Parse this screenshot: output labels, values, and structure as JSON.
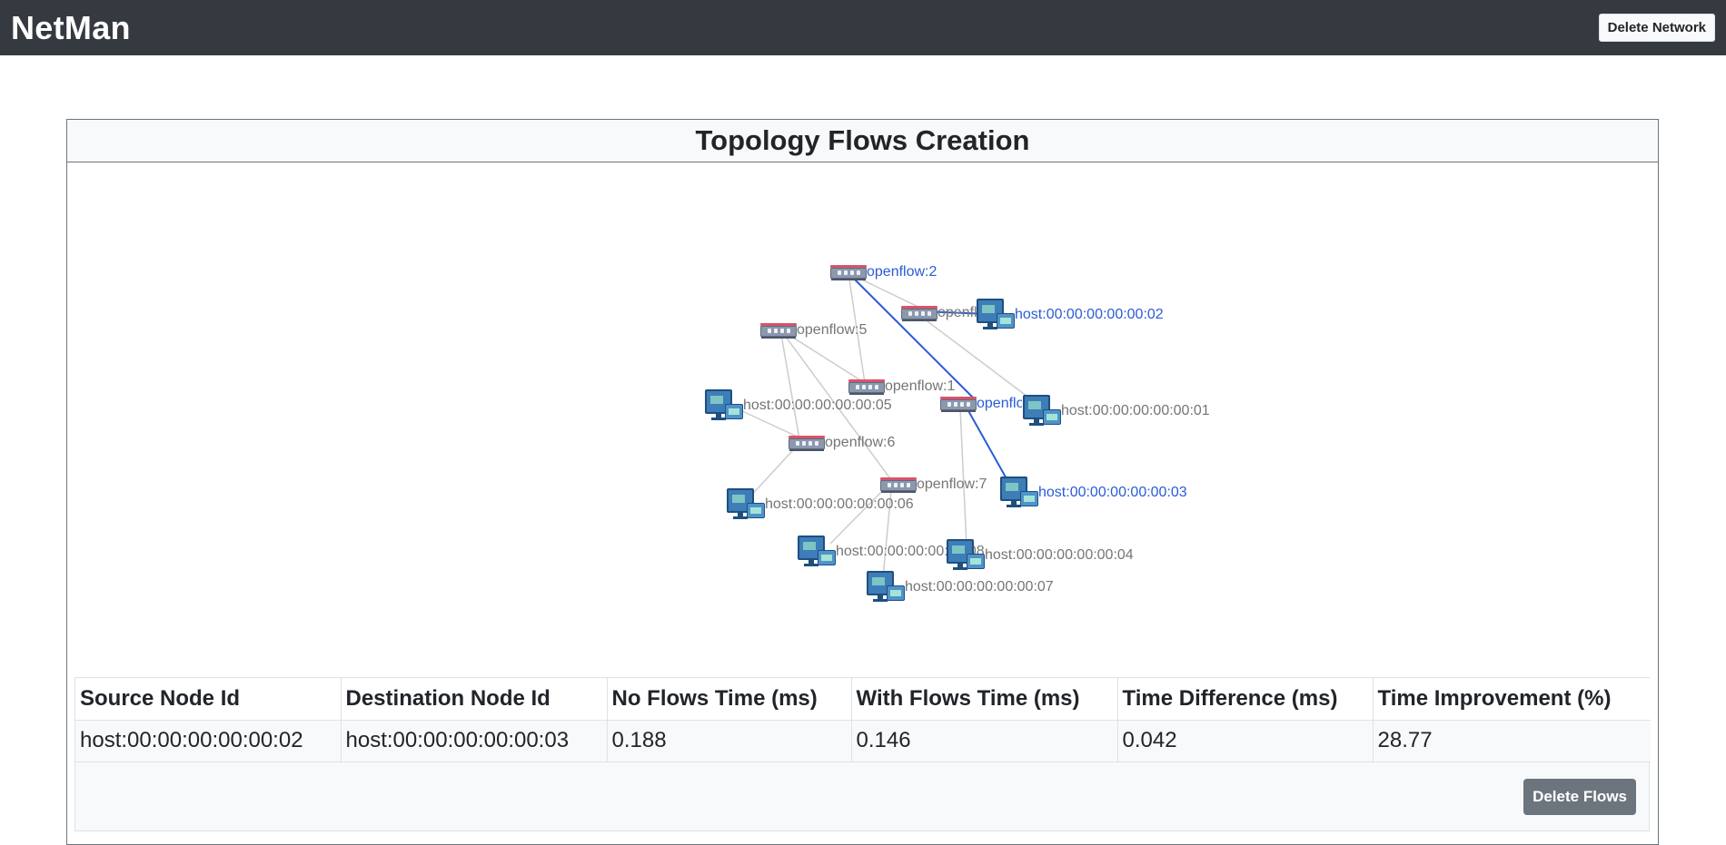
{
  "navbar": {
    "brand": "NetMan",
    "delete_network_label": "Delete Network"
  },
  "card": {
    "title": "Topology Flows Creation"
  },
  "topology": {
    "switches": [
      {
        "id": "openflow:2",
        "label": "openflow:2",
        "active": true
      },
      {
        "id": "openflow:3",
        "label": "openflow:3",
        "active": false
      },
      {
        "id": "openflow:5",
        "label": "openflow:5",
        "active": false
      },
      {
        "id": "openflow:1",
        "label": "openflow:1",
        "active": false
      },
      {
        "id": "openflow:4",
        "label": "openflow:4",
        "active": true
      },
      {
        "id": "openflow:6",
        "label": "openflow:6",
        "active": false
      },
      {
        "id": "openflow:7",
        "label": "openflow:7",
        "active": false
      }
    ],
    "hosts": [
      {
        "id": "host:00:00:00:00:00:02",
        "label": "host:00:00:00:00:00:02",
        "active": true
      },
      {
        "id": "host:00:00:00:00:00:05",
        "label": "host:00:00:00:00:00:05",
        "active": false
      },
      {
        "id": "host:00:00:00:00:00:01",
        "label": "host:00:00:00:00:00:01",
        "active": false
      },
      {
        "id": "host:00:00:00:00:00:03",
        "label": "host:00:00:00:00:00:03",
        "active": true
      },
      {
        "id": "host:00:00:00:00:00:06",
        "label": "host:00:00:00:00:00:06",
        "active": false
      },
      {
        "id": "host:00:00:00:00:00:08",
        "label": "host:00:00:00:00:00:08",
        "active": false
      },
      {
        "id": "host:00:00:00:00:00:04",
        "label": "host:00:00:00:00:00:04",
        "active": false
      },
      {
        "id": "host:00:00:00:00:00:07",
        "label": "host:00:00:00:00:00:07",
        "active": false
      }
    ],
    "colors": {
      "edge": "#cccccc",
      "path": "#2a5bd7"
    }
  },
  "results": {
    "headers": [
      "Source Node Id",
      "Destination Node Id",
      "No Flows Time (ms)",
      "With Flows Time (ms)",
      "Time Difference (ms)",
      "Time Improvement (%)"
    ],
    "rows": [
      [
        "host:00:00:00:00:00:02",
        "host:00:00:00:00:00:03",
        "0.188",
        "0.146",
        "0.042",
        "28.77"
      ]
    ],
    "delete_flows_label": "Delete Flows"
  }
}
